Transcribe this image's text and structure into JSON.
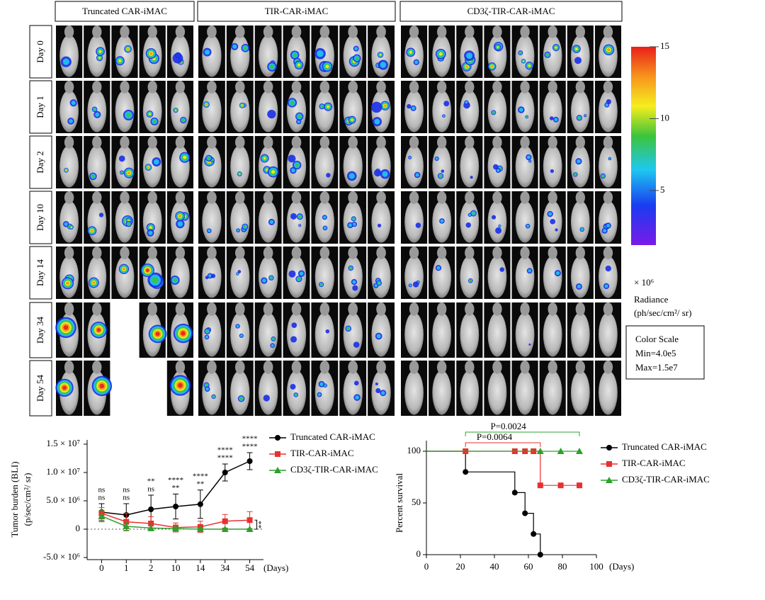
{
  "panel": {
    "groups": [
      "Truncated CAR-iMAC",
      "TIR-CAR-iMAC",
      "CD3ζ-TIR-CAR-iMAC"
    ],
    "days": [
      "Day 0",
      "Day 1",
      "Day 2",
      "Day 10",
      "Day 14",
      "Day 34",
      "Day 54"
    ],
    "colorbar": {
      "lim": [
        1.2,
        15
      ],
      "ticks": [
        15,
        10,
        5
      ],
      "unit": "× 10⁶",
      "label": "Radiance",
      "label_units": "(ph/sec/cm²/ sr)"
    },
    "color_scale": {
      "title": "Color Scale",
      "min": "Min=4.0e5",
      "max": "Max=1.5e7"
    }
  },
  "chart_data": [
    {
      "type": "line",
      "ylabel": "Tumor burden (BLI)",
      "ylabel_units": "(p/sec/cm²/ sr)",
      "xlabel": "(Days)",
      "categories": [
        "0",
        "1",
        "2",
        "10",
        "14",
        "34",
        "54"
      ],
      "ylim": [
        -5000000,
        15000000
      ],
      "yticks": [
        {
          "value": -5000000,
          "label": "-5.0 × 10⁶"
        },
        0,
        {
          "value": 5000000,
          "label": "5.0 × 10⁶"
        },
        {
          "value": 10000000,
          "label": "1.0 × 10⁷"
        },
        {
          "value": 15000000,
          "label": "1.5 × 10⁷"
        }
      ],
      "series": [
        {
          "name": "Truncated CAR-iMAC",
          "color": "#000000",
          "marker": "circle",
          "values": [
            3000000,
            2500000,
            3500000,
            4000000,
            4400000,
            10000000,
            12000000
          ],
          "errors": [
            1500000,
            2000000,
            2500000,
            2200000,
            2500000,
            1500000,
            1500000
          ]
        },
        {
          "name": "TIR-CAR-iMAC",
          "color": "#e8302f",
          "marker": "square",
          "values": [
            2800000,
            1300000,
            1000000,
            300000,
            400000,
            1400000,
            1600000
          ],
          "errors": [
            1000000,
            1500000,
            1200000,
            800000,
            1000000,
            1200000,
            1500000
          ]
        },
        {
          "name": "CD3ζ-TIR-CAR-iMAC",
          "color": "#2ca02c",
          "marker": "triangle",
          "values": [
            2300000,
            500000,
            200000,
            100000,
            0,
            0,
            0
          ],
          "errors": [
            1000000,
            800000,
            500000,
            300000,
            200000,
            100000,
            100000
          ]
        }
      ],
      "significance": [
        {
          "color": "#2ca02c",
          "labels": [
            "ns",
            "ns",
            "**",
            "****",
            "****",
            "****",
            "****"
          ]
        },
        {
          "color": "#e8302f",
          "labels": [
            "ns",
            "ns",
            "ns",
            "**",
            "**",
            "****",
            "****"
          ]
        }
      ],
      "bracket_label": "**"
    },
    {
      "type": "step",
      "ylabel": "Percent survival",
      "xlabel": "(Days)",
      "xlim": [
        0,
        100
      ],
      "xticks": [
        0,
        20,
        40,
        60,
        80,
        100
      ],
      "ylim": [
        0,
        100
      ],
      "yticks": [
        0,
        50,
        100
      ],
      "series": [
        {
          "name": "Truncated CAR-iMAC",
          "color": "#000000",
          "marker": "circle",
          "x": [
            0,
            23,
            52,
            58,
            63,
            67
          ],
          "values": [
            100,
            80,
            60,
            40,
            20,
            0
          ]
        },
        {
          "name": "TIR-CAR-iMAC",
          "color": "#e8302f",
          "marker": "square",
          "x": [
            0,
            23,
            52,
            58,
            63,
            67,
            79,
            90
          ],
          "values": [
            100,
            100,
            100,
            100,
            100,
            67,
            67,
            67
          ]
        },
        {
          "name": "CD3ζ-TIR-CAR-iMAC",
          "color": "#2ca02c",
          "marker": "triangle",
          "x": [
            0,
            67,
            79,
            90
          ],
          "values": [
            100,
            100,
            100,
            100
          ]
        }
      ],
      "comparisons": [
        {
          "label": "P=0.0064",
          "color": "#e8302f",
          "x": [
            23,
            67
          ]
        },
        {
          "label": "P=0.0024",
          "color": "#2ca02c",
          "x": [
            23,
            90
          ]
        }
      ]
    }
  ]
}
